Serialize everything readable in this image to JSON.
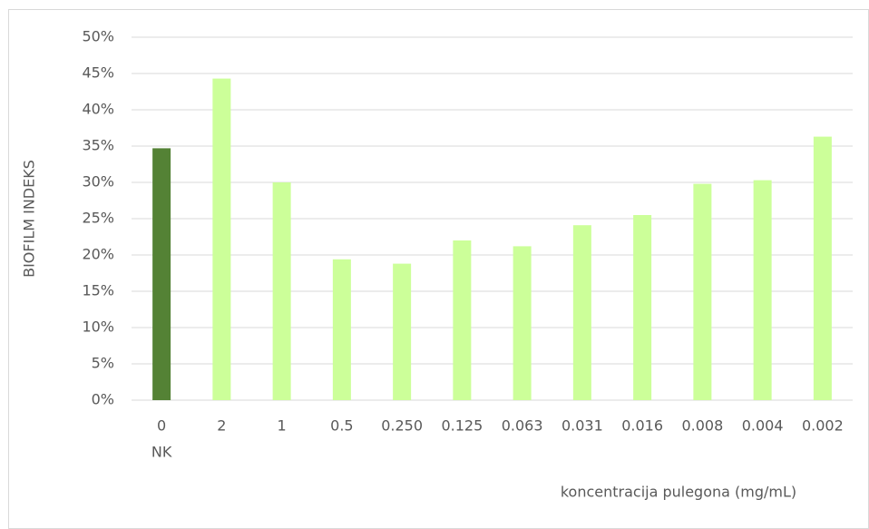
{
  "chart_data": {
    "type": "bar",
    "x_label": "koncentracija pulegona (mg/mL)",
    "y_label": "BIOFILM INDEKS",
    "categories": [
      "0",
      "2",
      "1",
      "0.5",
      "0.250",
      "0.125",
      "0.063",
      "0.031",
      "0.016",
      "0.008",
      "0.004",
      "0.002"
    ],
    "category_second_line": [
      "NK",
      null,
      null,
      null,
      null,
      null,
      null,
      null,
      null,
      null,
      null,
      null
    ],
    "values": [
      34.7,
      44.3,
      30.0,
      19.4,
      18.8,
      22.0,
      21.2,
      24.1,
      25.5,
      29.8,
      30.3,
      36.3
    ],
    "colors": [
      "#548235",
      "#ccff99",
      "#ccff99",
      "#ccff99",
      "#ccff99",
      "#ccff99",
      "#ccff99",
      "#ccff99",
      "#ccff99",
      "#ccff99",
      "#ccff99",
      "#ccff99"
    ],
    "ylim": [
      0,
      50
    ],
    "yticks": [
      {
        "value": 0,
        "label": "0%"
      },
      {
        "value": 5,
        "label": "5%"
      },
      {
        "value": 10,
        "label": "10%"
      },
      {
        "value": 15,
        "label": "15%"
      },
      {
        "value": 20,
        "label": "20%"
      },
      {
        "value": 25,
        "label": "25%"
      },
      {
        "value": 30,
        "label": "30%"
      },
      {
        "value": 35,
        "label": "35%"
      },
      {
        "value": 40,
        "label": "40%"
      },
      {
        "value": 45,
        "label": "45%"
      },
      {
        "value": 50,
        "label": "50%"
      }
    ],
    "grid": true
  }
}
